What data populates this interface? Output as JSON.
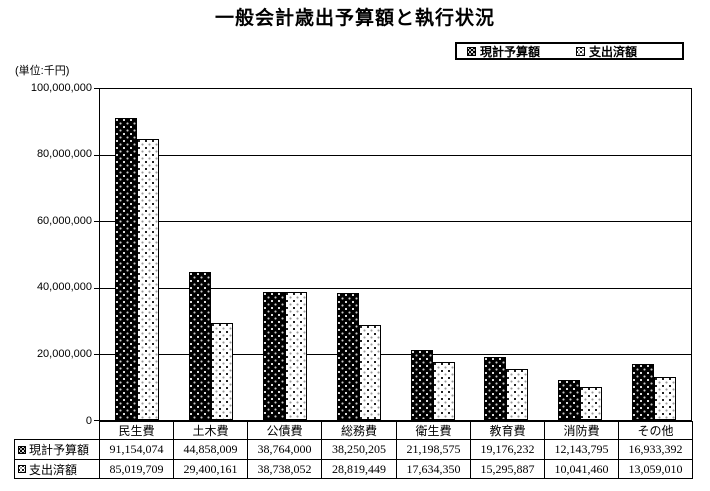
{
  "chart_data": {
    "type": "bar",
    "title": "一般会計歳出予算額と執行状況",
    "unit_label": "(単位:千円)",
    "categories": [
      "民生費",
      "土木費",
      "公債費",
      "総務費",
      "衛生費",
      "教育費",
      "消防費",
      "その他"
    ],
    "series": [
      {
        "name": "現計予算額",
        "swatch": "black-dotted",
        "values": [
          91154074,
          44858009,
          38764000,
          38250205,
          21198575,
          19176232,
          12143795,
          16933392
        ]
      },
      {
        "name": "支出済額",
        "swatch": "white-dotted",
        "values": [
          85019709,
          29400161,
          38738052,
          28819449,
          17634350,
          15295887,
          10041460,
          13059010
        ]
      }
    ],
    "ylim": [
      0,
      100000000
    ],
    "ytick_interval": 20000000,
    "ytick_labels": [
      "0",
      "20,000,000",
      "40,000,000",
      "60,000,000",
      "80,000,000",
      "100,000,000"
    ],
    "grid": true,
    "legend_position": "top-right",
    "colors": {
      "series1_fill": "#000000",
      "series1_dots": "#ffffff",
      "series2_fill": "#ffffff",
      "series2_dots": "#000000",
      "axis": "#000000",
      "background": "#ffffff"
    }
  }
}
